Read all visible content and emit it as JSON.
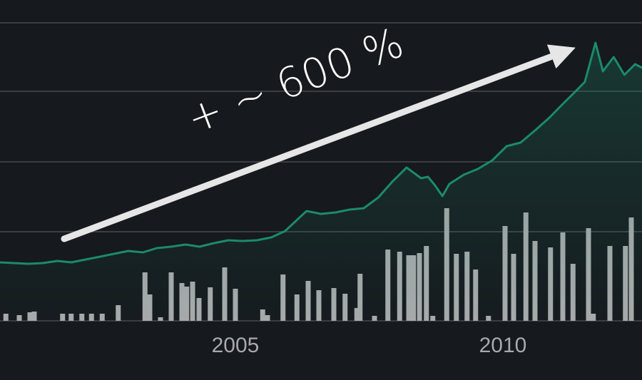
{
  "chart_data": {
    "type": "line",
    "annotation": "+ ~ 600 %",
    "xlim": [
      2000.6,
      2012.6
    ],
    "xticks": [
      2005,
      2010
    ],
    "ylim": [
      0,
      450
    ],
    "ygrid": [
      125,
      223,
      322,
      418
    ],
    "background": "#16191d",
    "series": [
      {
        "type": "line",
        "color": "#1c8a6c",
        "x": [
          2000.6,
          2000.87,
          2001.13,
          2001.4,
          2001.67,
          2001.93,
          2002.2,
          2002.47,
          2002.73,
          2003.0,
          2003.27,
          2003.53,
          2003.8,
          2004.07,
          2004.33,
          2004.6,
          2004.87,
          2005.13,
          2005.4,
          2005.67,
          2005.93,
          2006.2,
          2006.33,
          2006.6,
          2006.87,
          2007.13,
          2007.4,
          2007.67,
          2007.93,
          2008.2,
          2008.47,
          2008.6,
          2008.73,
          2008.87,
          2009.0,
          2009.27,
          2009.53,
          2009.8,
          2010.07,
          2010.33,
          2010.6,
          2010.87,
          2011.13,
          2011.4,
          2011.53,
          2011.73,
          2011.87,
          2012.07,
          2012.27,
          2012.47,
          2012.6
        ],
        "values": [
          82,
          81,
          80,
          81,
          84,
          82,
          86,
          90,
          94,
          98,
          96,
          102,
          104,
          107,
          104,
          109,
          113,
          112,
          113,
          117,
          126,
          145,
          154,
          150,
          152,
          156,
          158,
          173,
          195,
          215,
          200,
          202,
          190,
          175,
          192,
          205,
          213,
          225,
          245,
          250,
          267,
          285,
          305,
          325,
          335,
          390,
          350,
          370,
          345,
          360,
          355
        ]
      },
      {
        "type": "bar",
        "color": "#a9aaac",
        "x": [
          2000.71,
          2000.96,
          2001.16,
          2001.24,
          2001.77,
          2001.93,
          2002.13,
          2002.31,
          2002.51,
          2002.81,
          2003.31,
          2003.4,
          2003.6,
          2003.8,
          2004.0,
          2004.09,
          2004.2,
          2004.32,
          2004.53,
          2004.8,
          2005.0,
          2005.51,
          2005.6,
          2005.89,
          2006.15,
          2006.36,
          2006.56,
          2006.84,
          2007.05,
          2007.27,
          2007.33,
          2007.6,
          2007.85,
          2008.07,
          2008.24,
          2008.33,
          2008.44,
          2008.57,
          2008.69,
          2008.95,
          2009.13,
          2009.33,
          2009.49,
          2009.73,
          2010.04,
          2010.2,
          2010.43,
          2010.6,
          2010.89,
          2011.12,
          2011.31,
          2011.6,
          2011.69,
          2012.0,
          2012.29,
          2012.4
        ],
        "values": [
          10,
          8,
          12,
          13,
          10,
          10,
          10,
          10,
          10,
          22,
          68,
          37,
          5,
          68,
          53,
          48,
          55,
          32,
          47,
          75,
          45,
          16,
          8,
          65,
          37,
          56,
          43,
          46,
          38,
          18,
          66,
          7,
          100,
          97,
          92,
          92,
          95,
          105,
          7,
          158,
          94,
          97,
          72,
          7,
          133,
          94,
          152,
          112,
          103,
          124,
          80,
          130,
          10,
          105,
          105,
          145
        ]
      }
    ]
  }
}
